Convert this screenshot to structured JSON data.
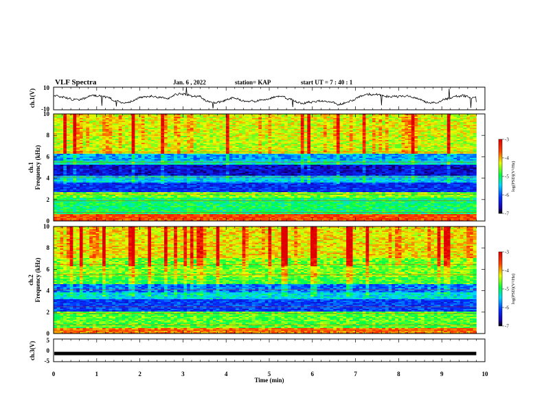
{
  "header": {
    "title": "VLF Spectra",
    "date": "Jan. 6 , 2022",
    "station": "station= KAP",
    "start": "start UT =  7 : 40 : 1"
  },
  "chart_data": [
    {
      "type": "line",
      "panel": "ch1-waveform",
      "ylabel": "ch.1(V)",
      "yticks": [
        "10",
        "-10"
      ],
      "ylim": [
        -10,
        10
      ],
      "xlim": [
        0,
        10
      ],
      "trace_end_min": 9.8,
      "color": "#000000"
    },
    {
      "type": "heatmap",
      "panel": "ch1-spectrogram",
      "ylabel": "ch.1\nFrequency (kHz)",
      "ylabel_lines": [
        "ch.1",
        "Frequency (kHz)"
      ],
      "yticks": [
        "0",
        "2",
        "4",
        "6",
        "8",
        "10"
      ],
      "ylim": [
        0,
        10
      ],
      "xlim": [
        0,
        10
      ],
      "data_end_min": 9.8,
      "colorbar": {
        "label": "log(PSD)(V²/Hz)",
        "ticks": [
          "-3",
          "-4",
          "-5",
          "-6",
          "-7"
        ],
        "range": [
          -7,
          -3
        ]
      },
      "bands_khz": [
        {
          "lo": 0.0,
          "hi": 0.6,
          "level": -3.6
        },
        {
          "lo": 0.6,
          "hi": 2.2,
          "level": -5.0
        },
        {
          "lo": 2.2,
          "hi": 2.7,
          "level": -4.6
        },
        {
          "lo": 2.7,
          "hi": 3.6,
          "level": -6.2
        },
        {
          "lo": 3.6,
          "hi": 4.2,
          "level": -5.5
        },
        {
          "lo": 4.2,
          "hi": 5.2,
          "level": -6.5
        },
        {
          "lo": 5.2,
          "hi": 5.6,
          "level": -5.3
        },
        {
          "lo": 5.6,
          "hi": 6.3,
          "level": -5.7
        },
        {
          "lo": 6.3,
          "hi": 6.6,
          "level": -4.3
        },
        {
          "lo": 6.6,
          "hi": 8.0,
          "level": -4.4
        },
        {
          "lo": 8.0,
          "hi": 10.0,
          "level": -4.3
        }
      ]
    },
    {
      "type": "heatmap",
      "panel": "ch2-spectrogram",
      "ylabel": "ch.2\nFrequency (kHz)",
      "ylabel_lines": [
        "ch.2",
        "Frequency (kHz)"
      ],
      "yticks": [
        "0",
        "2",
        "4",
        "6",
        "8",
        "10"
      ],
      "ylim": [
        0,
        10
      ],
      "xlim": [
        0,
        10
      ],
      "data_end_min": 9.8,
      "colorbar": {
        "label": "log(PSD)(V²/Hz)",
        "ticks": [
          "-3",
          "-4",
          "-5",
          "-6",
          "-7"
        ],
        "range": [
          -7,
          -3
        ]
      },
      "bands_khz": [
        {
          "lo": 0.0,
          "hi": 0.5,
          "level": -3.8
        },
        {
          "lo": 0.5,
          "hi": 2.0,
          "level": -4.7
        },
        {
          "lo": 2.0,
          "hi": 3.2,
          "level": -6.1
        },
        {
          "lo": 3.2,
          "hi": 3.8,
          "level": -5.4
        },
        {
          "lo": 3.8,
          "hi": 4.6,
          "level": -5.9
        },
        {
          "lo": 4.6,
          "hi": 5.2,
          "level": -4.8
        },
        {
          "lo": 5.2,
          "hi": 7.0,
          "level": -4.6
        },
        {
          "lo": 7.0,
          "hi": 10.0,
          "level": -4.2
        }
      ]
    },
    {
      "type": "line",
      "panel": "ch3-waveform",
      "ylabel": "ch.3(V)",
      "yticks": [
        "5",
        "0",
        "-5"
      ],
      "ylim": [
        -5,
        5
      ],
      "xlim": [
        0,
        10
      ],
      "level_v": -1.4,
      "trace_end_min": 9.8,
      "color": "#000000"
    }
  ],
  "xaxis": {
    "label": "Time (min)",
    "ticks": [
      "0",
      "1",
      "2",
      "3",
      "4",
      "5",
      "6",
      "7",
      "8",
      "9",
      "10"
    ]
  }
}
